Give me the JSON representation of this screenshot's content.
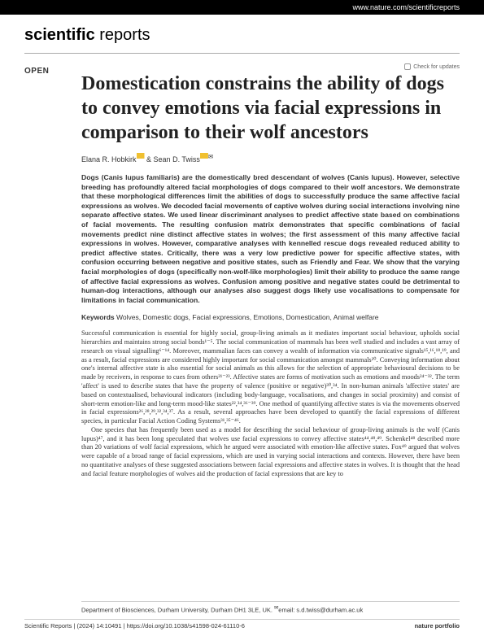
{
  "header_url": "www.nature.com/scientificreports",
  "journal": {
    "part1": "scientific",
    "part2": " reports"
  },
  "open_label": "OPEN",
  "updates_label": "Check for updates",
  "title": "Domestication constrains the ability of dogs to convey emotions via facial expressions in comparison to their wolf ancestors",
  "authors": {
    "a1": "Elana R. Hobkirk",
    "a2": "Sean D. Twiss"
  },
  "abstract": "Dogs (Canis lupus familiaris) are the domestically bred descendant of wolves (Canis lupus). However, selective breeding has profoundly altered facial morphologies of dogs compared to their wolf ancestors. We demonstrate that these morphological differences limit the abilities of dogs to successfully produce the same affective facial expressions as wolves. We decoded facial movements of captive wolves during social interactions involving nine separate affective states. We used linear discriminant analyses to predict affective state based on combinations of facial movements. The resulting confusion matrix demonstrates that specific combinations of facial movements predict nine distinct affective states in wolves; the first assessment of this many affective facial expressions in wolves. However, comparative analyses with kennelled rescue dogs revealed reduced ability to predict affective states. Critically, there was a very low predictive power for specific affective states, with confusion occurring between negative and positive states, such as Friendly and Fear. We show that the varying facial morphologies of dogs (specifically non-wolf-like morphologies) limit their ability to produce the same range of affective facial expressions as wolves. Confusion among positive and negative states could be detrimental to human-dog interactions, although our analyses also suggest dogs likely use vocalisations to compensate for limitations in facial communication.",
  "keywords": {
    "label": "Keywords",
    "list": "Wolves, Domestic dogs, Facial expressions, Emotions, Domestication, Animal welfare"
  },
  "body": {
    "p1": "Successful communication is essential for highly social, group-living animals as it mediates important social behaviour, upholds social hierarchies and maintains strong social bonds¹⁻⁵. The social communication of mammals has been well studied and includes a vast array of research on visual signalling⁶⁻¹⁴. Moreover, mammalian faces can convey a wealth of information via communicative signals¹⁵,¹⁶,¹⁸,¹⁹, and as a result, facial expressions are considered highly important for social communication amongst mammals²⁰. Conveying information about one's internal affective state is also essential for social animals as this allows for the selection of appropriate behavioural decisions to be made by receivers, in response to cues from others²¹⁻²³. Affective states are forms of motivation such as emotions and moods²⁴⁻³². The term 'affect' is used to describe states that have the property of valence (positive or negative)³⁰,³⁴. In non-human animals 'affective states' are based on contextualised, behavioural indicators (including body-language, vocalisations, and changes in social proximity) and consist of short-term emotion-like and long-term mood-like states²²,³⁴,³⁶⁻³⁹. One method of quantifying affective states is via the movements observed in facial expressions²⁶,²⁸,²⁹,³²,³⁴,³⁷. As a result, several approaches have been developed to quantify the facial expressions of different species, in particular Facial Action Coding Systems³¹,³⁵⁻⁴⁶.",
    "p2": "One species that has frequently been used as a model for describing the social behaviour of group-living animals is the wolf (Canis lupus)⁴⁷, and it has been long speculated that wolves use facial expressions to convey affective states⁴⁴,⁴⁸,⁴⁹. Schenkel⁴⁸ described more than 20 variations of wolf facial expressions, which he argued were associated with emotion-like affective states. Fox⁴⁹ argued that wolves were capable of a broad range of facial expressions, which are used in varying social interactions and contexts. However, there have been no quantitative analyses of these suggested associations between facial expressions and affective states in wolves. It is thought that the head and facial feature morphologies of wolves aid the production of facial expressions that are key to"
  },
  "affiliation": "Department of Biosciences, Durham University, Durham DH1 3LE, UK.",
  "affiliation_email": "email: s.d.twiss@durham.ac.uk",
  "footer": {
    "left": "Scientific Reports |",
    "citation": "(2024) 14:10491",
    "doi": "| https://doi.org/10.1038/s41598-024-61110-6",
    "portfolio": "nature portfolio"
  }
}
